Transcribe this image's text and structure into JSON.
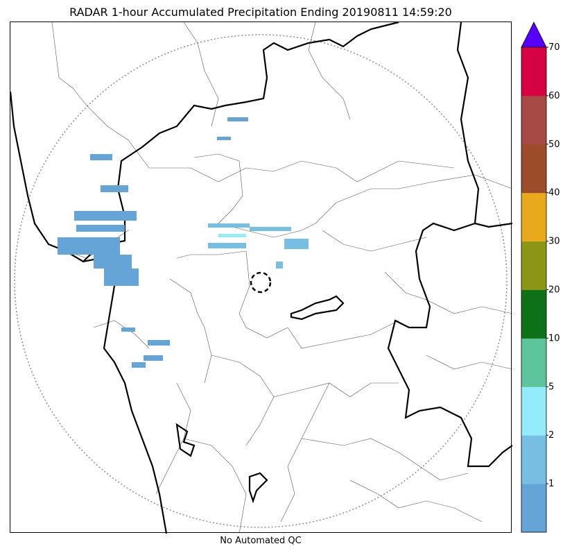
{
  "title": "RADAR 1-hour Accumulated Precipitation Ending 20190811 14:59:20",
  "footer_note": "No Automated QC",
  "legend": {
    "bins": [
      {
        "label": "1",
        "color": "#64a4d6"
      },
      {
        "label": "2",
        "color": "#77bee3"
      },
      {
        "label": "5",
        "color": "#94ecfb"
      },
      {
        "label": "10",
        "color": "#5ec49c"
      },
      {
        "label": "20",
        "color": "#0e7118"
      },
      {
        "label": "30",
        "color": "#8b9617"
      },
      {
        "label": "40",
        "color": "#e8aa1c"
      },
      {
        "label": "50",
        "color": "#9b4d2a"
      },
      {
        "label": "60",
        "color": "#a74a46"
      },
      {
        "label": "70",
        "color": "#d70244"
      }
    ],
    "over_color": "#5500ff"
  }
}
